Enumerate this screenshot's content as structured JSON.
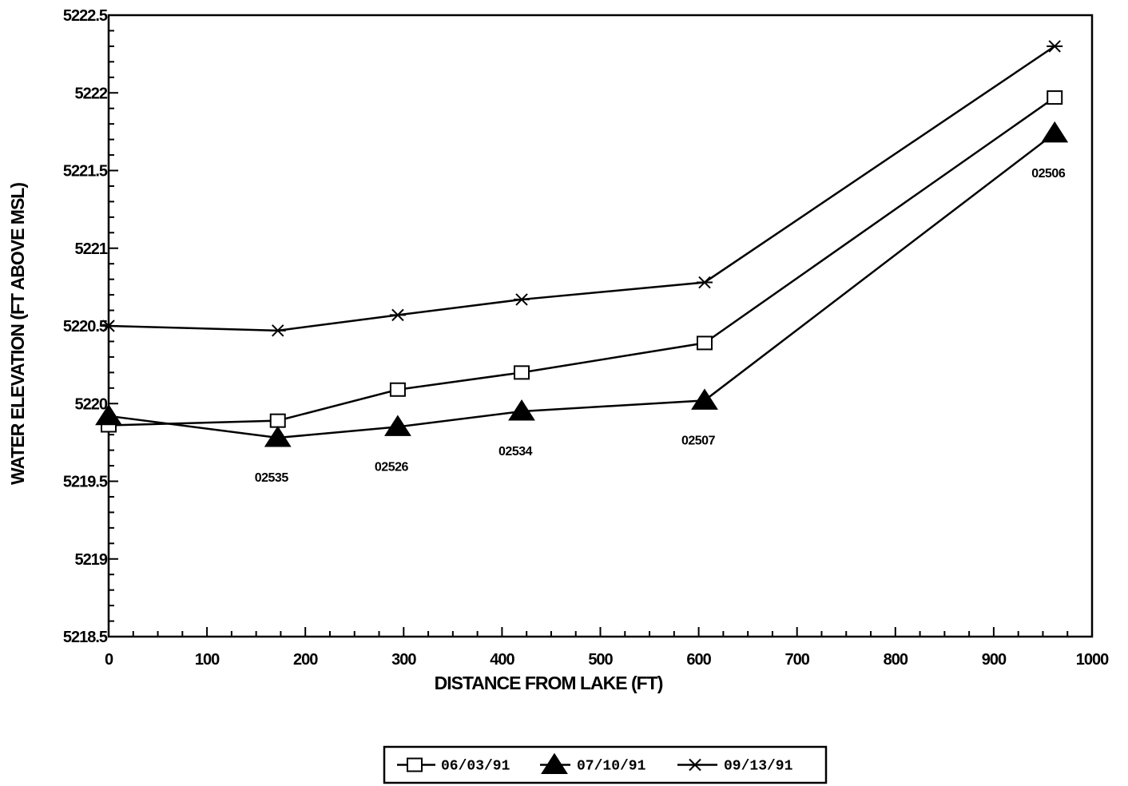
{
  "chart_data": {
    "type": "line",
    "title": "",
    "xlabel": "DISTANCE FROM LAKE (FT)",
    "ylabel": "WATER ELEVATION (FT ABOVE MSL)",
    "xlim": [
      0,
      1000
    ],
    "ylim": [
      5218.5,
      5222.5
    ],
    "x_major_ticks": [
      0,
      100,
      200,
      300,
      400,
      500,
      600,
      700,
      800,
      900,
      1000
    ],
    "x_tick_labels": [
      "0",
      "100",
      "200",
      "300",
      "400",
      "500",
      "600",
      "700",
      "800",
      "900",
      "1000"
    ],
    "y_major_ticks": [
      5218.5,
      5219,
      5219.5,
      5220,
      5220.5,
      5221,
      5221.5,
      5222,
      5222.5
    ],
    "y_tick_labels": [
      "5218.5",
      "5219",
      "5219.5",
      "5220",
      "5220.5",
      "5221",
      "5221.5",
      "5222",
      "5222.5"
    ],
    "grid": false,
    "legend_position": "bottom-center",
    "x": [
      0,
      172,
      294,
      420,
      606,
      962
    ],
    "series": [
      {
        "name": "06/03/91",
        "marker": "square-open",
        "color": "#000000",
        "values": [
          5219.86,
          5219.89,
          5220.09,
          5220.2,
          5220.39,
          5221.97
        ]
      },
      {
        "name": "07/10/91",
        "marker": "triangle-filled",
        "color": "#000000",
        "values": [
          5219.92,
          5219.78,
          5219.85,
          5219.95,
          5220.02,
          5221.74
        ]
      },
      {
        "name": "09/13/91",
        "marker": "star",
        "color": "#000000",
        "values": [
          5220.5,
          5220.47,
          5220.57,
          5220.67,
          5220.78,
          5222.3
        ]
      }
    ],
    "point_labels": [
      {
        "x": 172,
        "text": "02535"
      },
      {
        "x": 294,
        "text": "02526"
      },
      {
        "x": 420,
        "text": "02534"
      },
      {
        "x": 606,
        "text": "02507"
      },
      {
        "x": 962,
        "text": "02506"
      }
    ]
  }
}
